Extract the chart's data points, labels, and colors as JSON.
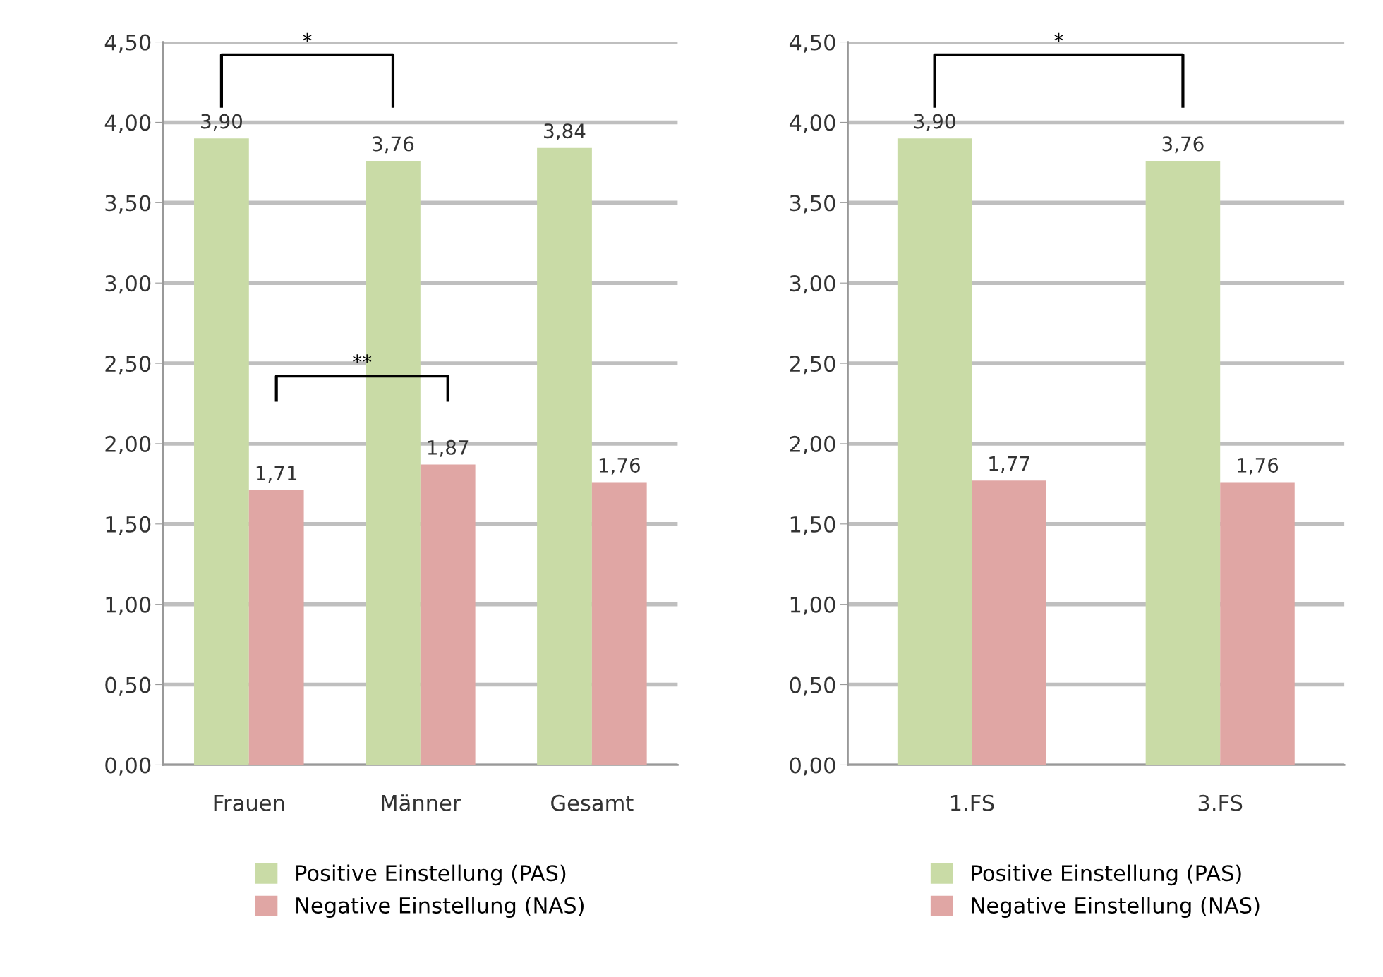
{
  "chart_data": [
    {
      "type": "bar",
      "categories": [
        "Frauen",
        "Männer",
        "Gesamt"
      ],
      "series": [
        {
          "name": "Positive Einstellung (PAS)",
          "color": "#c9dba6",
          "values": [
            3.9,
            3.76,
            3.84
          ],
          "value_labels": [
            "3,90",
            "3,76",
            "3,84"
          ]
        },
        {
          "name": "Negative Einstellung (NAS)",
          "color": "#e0a6a4",
          "values": [
            1.71,
            1.87,
            1.76
          ],
          "value_labels": [
            "1,71",
            "1,87",
            "1,76"
          ]
        }
      ],
      "ylim": [
        0,
        4.5
      ],
      "yticks": [
        {
          "value": 0,
          "label": "0,00"
        },
        {
          "value": 0.5,
          "label": "0,50"
        },
        {
          "value": 1,
          "label": "1,00"
        },
        {
          "value": 1.5,
          "label": "1,50"
        },
        {
          "value": 2,
          "label": "2,00"
        },
        {
          "value": 2.5,
          "label": "2,50"
        },
        {
          "value": 3,
          "label": "3,00"
        },
        {
          "value": 3.5,
          "label": "3,50"
        },
        {
          "value": 4,
          "label": "4,00"
        },
        {
          "value": 4.5,
          "label": "4,50"
        }
      ],
      "grid": "y",
      "legend": "bottom",
      "annotations": [
        "*",
        "**"
      ]
    },
    {
      "type": "bar",
      "categories": [
        "1.FS",
        "3.FS"
      ],
      "series": [
        {
          "name": "Positive Einstellung (PAS)",
          "color": "#c9dba6",
          "values": [
            3.9,
            3.76
          ],
          "value_labels": [
            "3,90",
            "3,76"
          ]
        },
        {
          "name": "Negative Einstellung (NAS)",
          "color": "#e0a6a4",
          "values": [
            1.77,
            1.76
          ],
          "value_labels": [
            "1,77",
            "1,76"
          ]
        }
      ],
      "ylim": [
        0,
        4.5
      ],
      "yticks": [
        {
          "value": 0,
          "label": "0,00"
        },
        {
          "value": 0.5,
          "label": "0,50"
        },
        {
          "value": 1,
          "label": "1,00"
        },
        {
          "value": 1.5,
          "label": "1,50"
        },
        {
          "value": 2,
          "label": "2,00"
        },
        {
          "value": 2.5,
          "label": "2,50"
        },
        {
          "value": 3,
          "label": "3,00"
        },
        {
          "value": 3.5,
          "label": "3,50"
        },
        {
          "value": 4,
          "label": "4,00"
        },
        {
          "value": 4.5,
          "label": "4,50"
        }
      ],
      "grid": "y",
      "legend": "bottom",
      "annotations": [
        "*"
      ]
    }
  ]
}
